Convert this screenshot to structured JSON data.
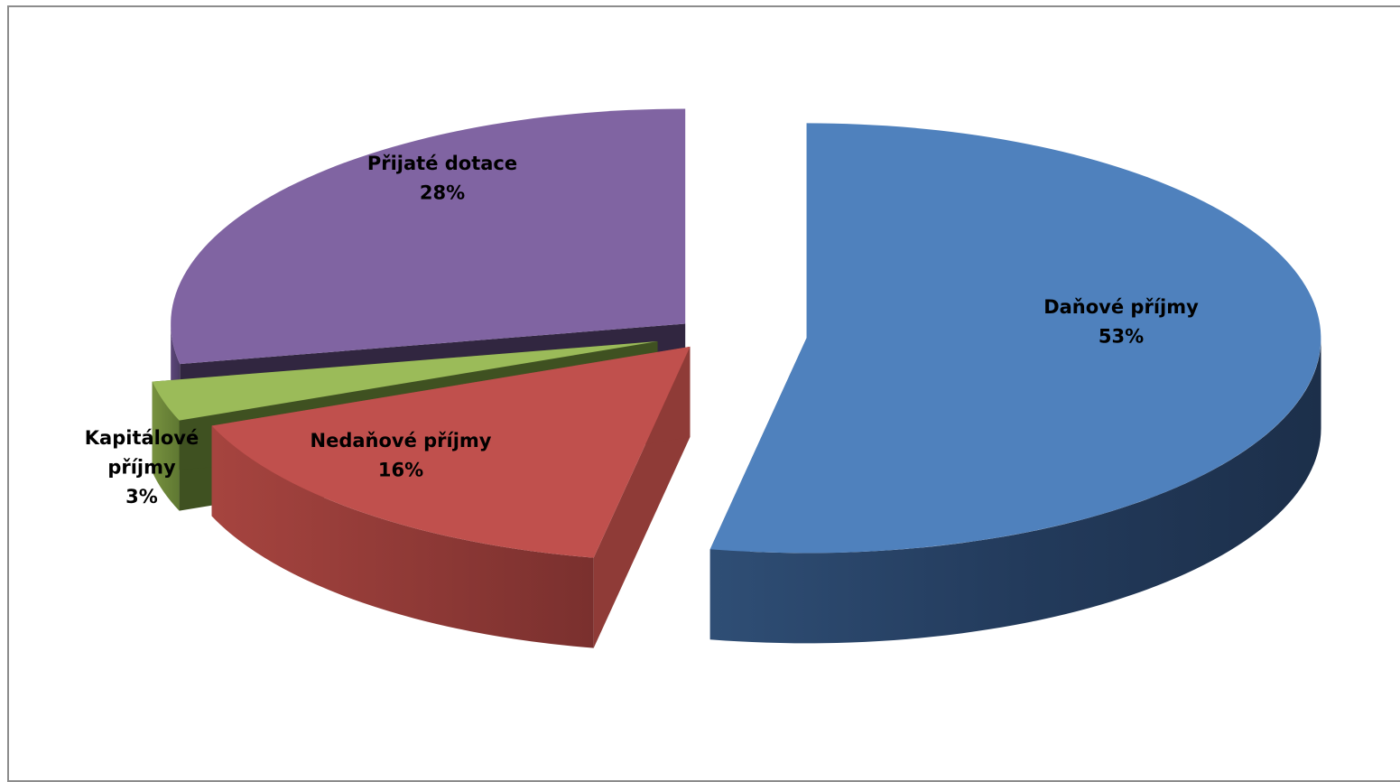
{
  "chart_data": {
    "type": "pie",
    "title": "",
    "categories": [
      "Daňové příjmy",
      "Nedaňové příjmy",
      "Kapitálové příjmy",
      "Přijaté dotace"
    ],
    "values": [
      53,
      16,
      3,
      28
    ],
    "value_labels": [
      "53%",
      "16%",
      "3%",
      "28%"
    ],
    "label_lines": [
      [
        "Daňové příjmy",
        "53%"
      ],
      [
        "Nedaňové příjmy",
        "16%"
      ],
      [
        "Kapitálové",
        "příjmy",
        "3%"
      ],
      [
        "Přijaté dotace",
        "28%"
      ]
    ],
    "colors": [
      "#4f81bd",
      "#c0504d",
      "#9bbb59",
      "#8064a2"
    ],
    "style": "3d-exploded",
    "legend": "none",
    "grid": false
  }
}
